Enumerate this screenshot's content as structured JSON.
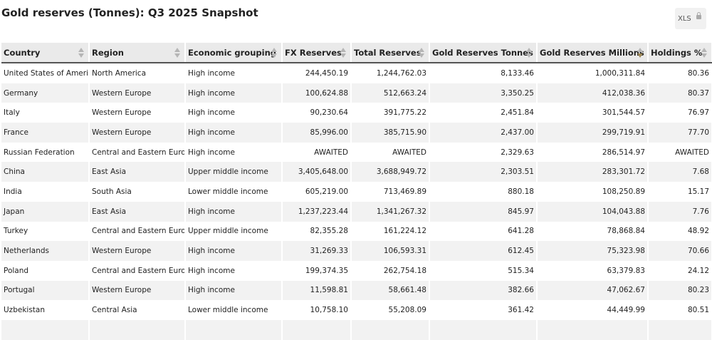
{
  "header": {
    "title": "Gold reserves (Tonnes): Q3 2025 Snapshot",
    "export_button": "XLS"
  },
  "table": {
    "columns": [
      "Country",
      "Region",
      "Economic grouping",
      "FX Reserves",
      "Total Reserves",
      "Gold Reserves Tonnes",
      "Gold Reserves Millions",
      "Holdings %"
    ],
    "rows": [
      [
        "United States of America",
        "North America",
        "High income",
        "244,450.19",
        "1,244,762.03",
        "8,133.46",
        "1,000,311.84",
        "80.36"
      ],
      [
        "Germany",
        "Western Europe",
        "High income",
        "100,624.88",
        "512,663.24",
        "3,350.25",
        "412,038.36",
        "80.37"
      ],
      [
        "Italy",
        "Western Europe",
        "High income",
        "90,230.64",
        "391,775.22",
        "2,451.84",
        "301,544.57",
        "76.97"
      ],
      [
        "France",
        "Western Europe",
        "High income",
        "85,996.00",
        "385,715.90",
        "2,437.00",
        "299,719.91",
        "77.70"
      ],
      [
        "Russian Federation",
        "Central and Eastern Europe",
        "High income",
        "AWAITED",
        "AWAITED",
        "2,329.63",
        "286,514.97",
        "AWAITED"
      ],
      [
        "China",
        "East Asia",
        "Upper middle income",
        "3,405,648.00",
        "3,688,949.72",
        "2,303.51",
        "283,301.72",
        "7.68"
      ],
      [
        "India",
        "South Asia",
        "Lower middle income",
        "605,219.00",
        "713,469.89",
        "880.18",
        "108,250.89",
        "15.17"
      ],
      [
        "Japan",
        "East Asia",
        "High income",
        "1,237,223.44",
        "1,341,267.32",
        "845.97",
        "104,043.88",
        "7.76"
      ],
      [
        "Turkey",
        "Central and Eastern Europe",
        "Upper middle income",
        "82,355.28",
        "161,224.12",
        "641.28",
        "78,868.84",
        "48.92"
      ],
      [
        "Netherlands",
        "Western Europe",
        "High income",
        "31,269.33",
        "106,593.31",
        "612.45",
        "75,323.98",
        "70.66"
      ],
      [
        "Poland",
        "Central and Eastern Europe",
        "High income",
        "199,374.35",
        "262,754.18",
        "515.34",
        "63,379.83",
        "24.12"
      ],
      [
        "Portugal",
        "Western Europe",
        "High income",
        "11,598.81",
        "58,661.48",
        "382.66",
        "47,062.67",
        "80.23"
      ],
      [
        "Uzbekistan",
        "Central Asia",
        "Lower middle income",
        "10,758.10",
        "55,208.09",
        "361.42",
        "44,449.99",
        "80.51"
      ]
    ]
  }
}
